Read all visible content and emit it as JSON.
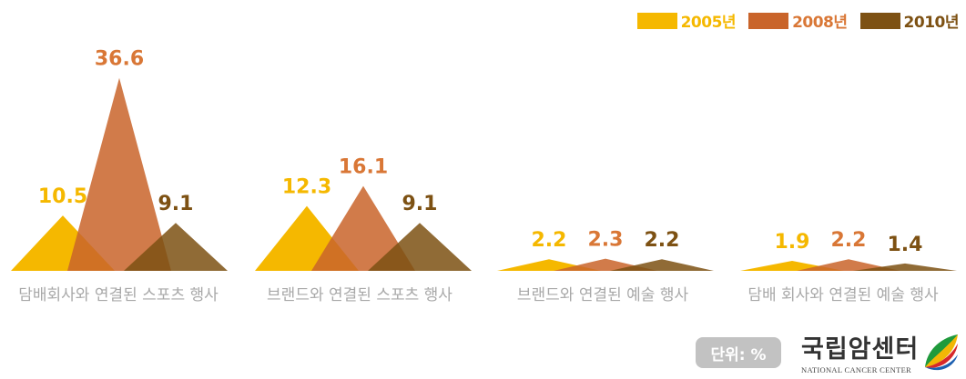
{
  "chart_data": {
    "type": "bar",
    "categories": [
      "담배회사와 연결된 스포츠 행사",
      "브랜드와 연결된 스포츠 행사",
      "브랜드와 연결된 예술 행사",
      "담배 회사와 연결된 예술 행사"
    ],
    "series": [
      {
        "name": "2005년",
        "color": "#f5b800",
        "values": [
          10.5,
          12.3,
          2.2,
          1.9
        ]
      },
      {
        "name": "2008년",
        "color": "#c9642a",
        "values": [
          36.6,
          16.1,
          2.3,
          2.2
        ]
      },
      {
        "name": "2010년",
        "color": "#7d5113",
        "values": [
          9.1,
          9.1,
          2.2,
          1.4
        ]
      }
    ],
    "label_colors": [
      "#f5b800",
      "#d97736",
      "#7d5113"
    ],
    "legend_placement": "top-right"
  },
  "unit_badge": "단위: %",
  "logo": {
    "name_ko": "국립암센터",
    "name_en": "NATIONAL CANCER CENTER",
    "icon": "ncc-leaf-logo-icon"
  }
}
